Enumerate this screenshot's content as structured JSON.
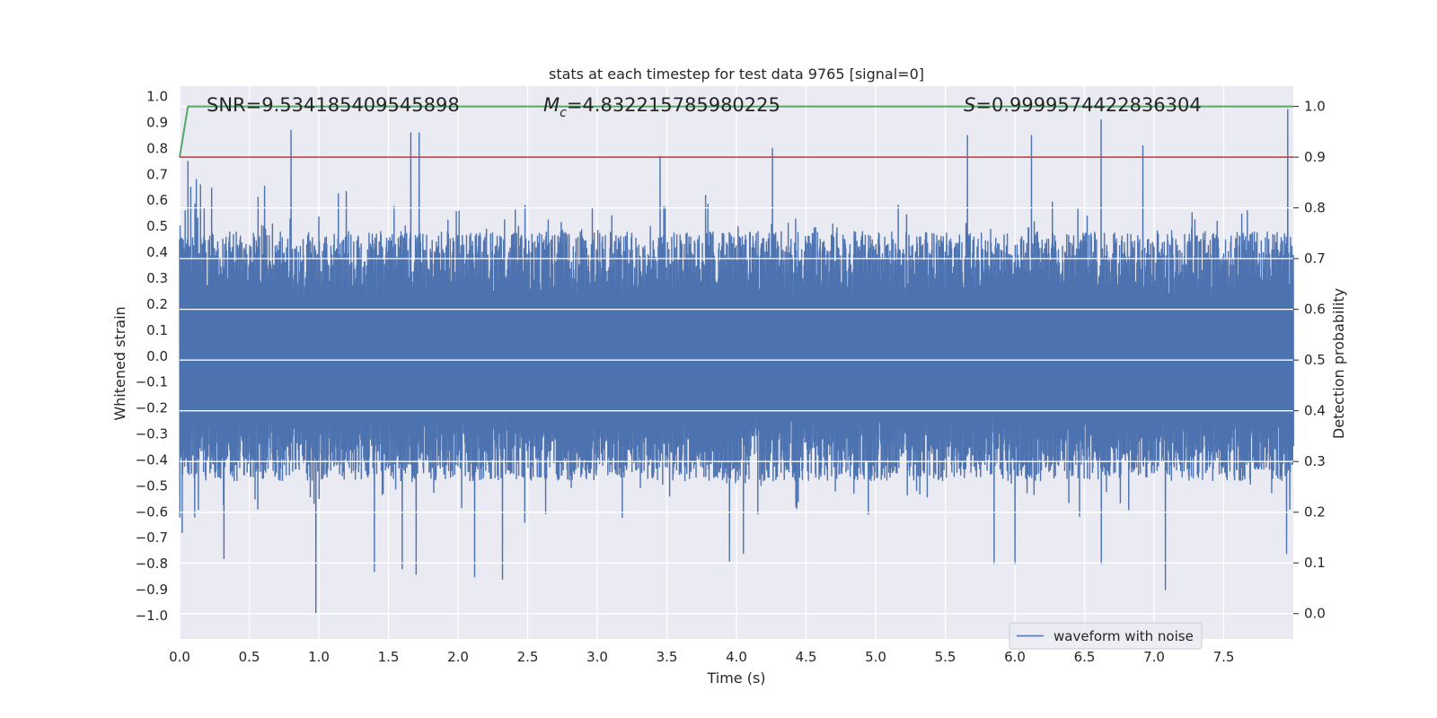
{
  "chart_data": {
    "type": "line",
    "title": "stats at each timestep for test data 9765 [signal=0]",
    "xlabel": "Time (s)",
    "ylabel": "Whitened strain",
    "y2label": "Detection probability",
    "xlim": [
      0.0,
      8.0
    ],
    "ylim": [
      -1.09,
      1.04
    ],
    "y2lim": [
      -0.05,
      1.04
    ],
    "xticks": [
      "0.0",
      "0.5",
      "1.0",
      "1.5",
      "2.0",
      "2.5",
      "3.0",
      "3.5",
      "4.0",
      "4.5",
      "5.0",
      "5.5",
      "6.0",
      "6.5",
      "7.0",
      "7.5"
    ],
    "xtick_values": [
      0.0,
      0.5,
      1.0,
      1.5,
      2.0,
      2.5,
      3.0,
      3.5,
      4.0,
      4.5,
      5.0,
      5.5,
      6.0,
      6.5,
      7.0,
      7.5
    ],
    "yticks": [
      "1.0",
      "0.9",
      "0.8",
      "0.7",
      "0.6",
      "0.5",
      "0.4",
      "0.3",
      "0.2",
      "0.1",
      "0.0",
      "−0.1",
      "−0.2",
      "−0.3",
      "−0.4",
      "−0.5",
      "−0.6",
      "−0.7",
      "−0.8",
      "−0.9",
      "−1.0"
    ],
    "ytick_values": [
      1.0,
      0.9,
      0.8,
      0.7,
      0.6,
      0.5,
      0.4,
      0.3,
      0.2,
      0.1,
      0.0,
      -0.1,
      -0.2,
      -0.3,
      -0.4,
      -0.5,
      -0.6,
      -0.7,
      -0.8,
      -0.9,
      -1.0
    ],
    "y2ticks": [
      "1.0",
      "0.9",
      "0.8",
      "0.7",
      "0.6",
      "0.5",
      "0.4",
      "0.3",
      "0.2",
      "0.1",
      "0.0"
    ],
    "y2tick_values": [
      1.0,
      0.9,
      0.8,
      0.7,
      0.6,
      0.5,
      0.4,
      0.3,
      0.2,
      0.1,
      0.0
    ],
    "annotations": {
      "snr": "SNR=9.534185409545898",
      "mc_symbol": "M",
      "mc_sub": "c",
      "mc_value": "=4.832215785980225",
      "s_symbol": "S",
      "s_value": "=0.9999574422836304"
    },
    "legend": {
      "label": "waveform with noise",
      "position": "lower-right"
    },
    "series": [
      {
        "name": "waveform with noise",
        "color": "#4c72b0",
        "axis": "left",
        "description": "whitened strain noise, roughly |y|<0.45 with spikes",
        "peaks_high": [
          [
            0.04,
            0.56
          ],
          [
            0.06,
            0.75
          ],
          [
            0.08,
            0.65
          ],
          [
            0.12,
            0.68
          ],
          [
            0.15,
            0.66
          ],
          [
            0.8,
            0.87
          ],
          [
            1.66,
            0.86
          ],
          [
            1.72,
            0.86
          ],
          [
            3.45,
            0.77
          ],
          [
            4.26,
            0.8
          ],
          [
            5.66,
            0.85
          ],
          [
            6.12,
            0.85
          ],
          [
            6.62,
            0.91
          ],
          [
            6.92,
            0.81
          ],
          [
            7.96,
            0.95
          ]
        ],
        "peaks_low": [
          [
            0.02,
            -0.68
          ],
          [
            0.11,
            -0.62
          ],
          [
            0.32,
            -0.78
          ],
          [
            0.98,
            -0.99
          ],
          [
            1.4,
            -0.83
          ],
          [
            1.6,
            -0.82
          ],
          [
            1.7,
            -0.84
          ],
          [
            2.12,
            -0.85
          ],
          [
            2.32,
            -0.86
          ],
          [
            3.95,
            -0.79
          ],
          [
            4.05,
            -0.76
          ],
          [
            5.85,
            -0.8
          ],
          [
            6.0,
            -0.8
          ],
          [
            6.62,
            -0.8
          ],
          [
            7.08,
            -0.9
          ],
          [
            7.95,
            -0.76
          ]
        ]
      },
      {
        "name": "detection probability",
        "color": "#55a868",
        "axis": "right",
        "x": [
          0.0,
          0.06,
          8.0
        ],
        "y": [
          0.9,
          1.0,
          1.0
        ]
      },
      {
        "name": "threshold",
        "color": "#c44e52",
        "axis": "right",
        "x": [
          0.0,
          8.0
        ],
        "y": [
          0.9,
          0.9
        ]
      }
    ]
  }
}
